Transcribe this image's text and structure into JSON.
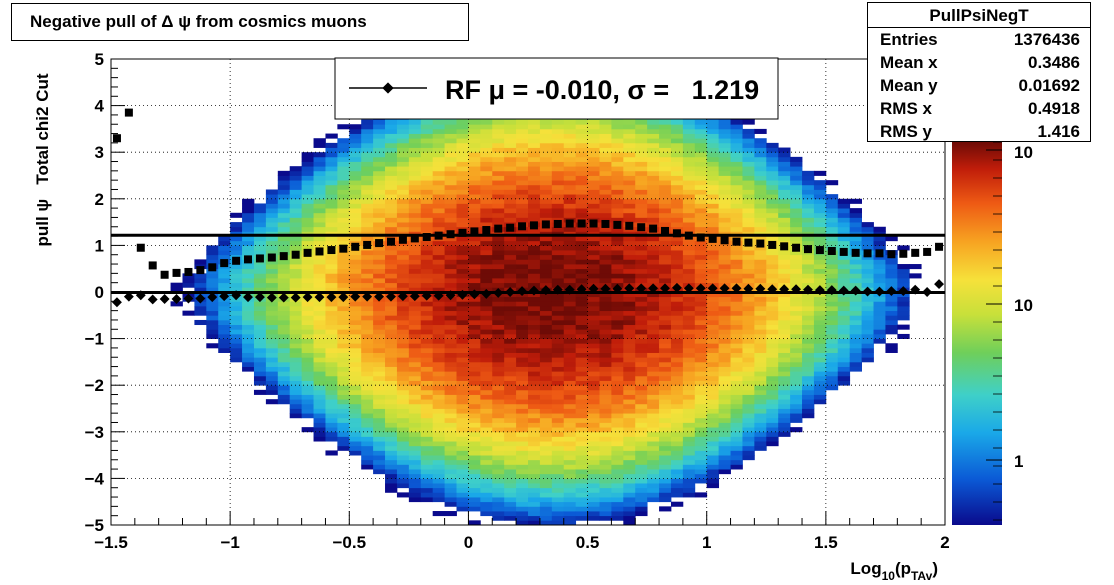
{
  "title": "Negative pull of Δ ψ from cosmics muons",
  "stats": {
    "name": "PullPsiNegT",
    "rows": [
      {
        "label": "Entries",
        "value": "1376436"
      },
      {
        "label": "Mean x",
        "value": "0.3486"
      },
      {
        "label": "Mean y",
        "value": "0.01692"
      },
      {
        "label": "RMS x",
        "value": "0.4918"
      },
      {
        "label": "RMS y",
        "value": "1.416"
      }
    ]
  },
  "legend": {
    "text": "RF μ = -0.010, σ =   1.219"
  },
  "colors": {
    "mean_marker": "#000000",
    "fit_line": "#000000",
    "palette": "rainbow (dark blue → cyan → green → yellow → orange → dark red)"
  },
  "chart_data": {
    "type": "heatmap",
    "xlabel_base": "Log",
    "xlabel_sub": "10",
    "xlabel_open": "(p",
    "xlabel_sub2": "TAv",
    "xlabel_close": ")",
    "ylabel": "pull ψ   Total chi2 Cut",
    "xlim": [
      -1.5,
      2
    ],
    "ylim": [
      -5,
      5
    ],
    "x_ticks": [
      "−1.5",
      "−1",
      "−0.5",
      "0",
      "0.5",
      "1",
      "1.5",
      "2"
    ],
    "y_ticks": [
      "−5",
      "−4",
      "−3",
      "−2",
      "−1",
      "0",
      "1",
      "2",
      "3",
      "4",
      "5"
    ],
    "grid": true,
    "colorbar_labels": [
      "1",
      "10",
      "10"
    ],
    "density": {
      "center_x": 0.35,
      "sigma_x": 0.49,
      "center_y": 0.0,
      "sigma_y": 1.416
    },
    "fit_lines": [
      {
        "name": "mean",
        "y": -0.01
      },
      {
        "name": "sigma",
        "y": 1.219
      }
    ],
    "series": [
      {
        "marker": "diamond",
        "x": [
          -1.475,
          -1.425,
          -1.375,
          -1.325,
          -1.275,
          -1.225,
          -1.175,
          -1.125,
          -1.075,
          -1.025,
          -0.975,
          -0.925,
          -0.875,
          -0.825,
          -0.775,
          -0.725,
          -0.675,
          -0.625,
          -0.575,
          -0.525,
          -0.475,
          -0.425,
          -0.375,
          -0.325,
          -0.275,
          -0.225,
          -0.175,
          -0.125,
          -0.075,
          -0.025,
          0.025,
          0.075,
          0.125,
          0.175,
          0.225,
          0.275,
          0.325,
          0.375,
          0.425,
          0.475,
          0.525,
          0.575,
          0.625,
          0.675,
          0.725,
          0.775,
          0.825,
          0.875,
          0.925,
          0.975,
          1.025,
          1.075,
          1.125,
          1.175,
          1.225,
          1.275,
          1.325,
          1.375,
          1.425,
          1.475,
          1.525,
          1.575,
          1.625,
          1.675,
          1.725,
          1.775,
          1.825,
          1.875,
          1.925,
          1.975
        ],
        "y": [
          -0.22,
          -0.1,
          -0.07,
          -0.16,
          -0.15,
          -0.15,
          -0.14,
          -0.14,
          -0.11,
          -0.09,
          -0.07,
          -0.11,
          -0.11,
          -0.12,
          -0.12,
          -0.12,
          -0.11,
          -0.11,
          -0.11,
          -0.11,
          -0.1,
          -0.1,
          -0.1,
          -0.1,
          -0.09,
          -0.09,
          -0.08,
          -0.08,
          -0.07,
          -0.06,
          -0.05,
          -0.04,
          -0.02,
          0.0,
          0.02,
          0.03,
          0.04,
          0.05,
          0.05,
          0.06,
          0.07,
          0.07,
          0.07,
          0.08,
          0.08,
          0.08,
          0.08,
          0.09,
          0.08,
          0.08,
          0.08,
          0.08,
          0.08,
          0.07,
          0.07,
          0.06,
          0.06,
          0.06,
          0.05,
          0.04,
          0.04,
          0.03,
          0.03,
          0.01,
          0.01,
          0.02,
          0.02,
          0.05,
          0.0,
          0.17
        ]
      },
      {
        "marker": "square",
        "x": [
          -1.475,
          -1.425,
          -1.375,
          -1.325,
          -1.275,
          -1.225,
          -1.175,
          -1.125,
          -1.075,
          -1.025,
          -0.975,
          -0.925,
          -0.875,
          -0.825,
          -0.775,
          -0.725,
          -0.675,
          -0.625,
          -0.575,
          -0.525,
          -0.475,
          -0.425,
          -0.375,
          -0.325,
          -0.275,
          -0.225,
          -0.175,
          -0.125,
          -0.075,
          -0.025,
          0.025,
          0.075,
          0.125,
          0.175,
          0.225,
          0.275,
          0.325,
          0.375,
          0.425,
          0.475,
          0.525,
          0.575,
          0.625,
          0.675,
          0.725,
          0.775,
          0.825,
          0.875,
          0.925,
          0.975,
          1.025,
          1.075,
          1.125,
          1.175,
          1.225,
          1.275,
          1.325,
          1.375,
          1.425,
          1.475,
          1.525,
          1.575,
          1.625,
          1.675,
          1.725,
          1.775,
          1.825,
          1.875,
          1.925,
          1.975
        ],
        "y": [
          3.3,
          3.85,
          0.95,
          0.57,
          0.37,
          0.41,
          0.43,
          0.47,
          0.53,
          0.62,
          0.67,
          0.7,
          0.72,
          0.74,
          0.77,
          0.8,
          0.84,
          0.87,
          0.9,
          0.93,
          0.97,
          1.01,
          1.05,
          1.08,
          1.12,
          1.15,
          1.18,
          1.21,
          1.24,
          1.27,
          1.3,
          1.33,
          1.36,
          1.38,
          1.41,
          1.43,
          1.45,
          1.46,
          1.47,
          1.47,
          1.47,
          1.46,
          1.44,
          1.42,
          1.39,
          1.36,
          1.31,
          1.26,
          1.21,
          1.17,
          1.14,
          1.11,
          1.08,
          1.06,
          1.04,
          1.01,
          0.98,
          0.95,
          0.92,
          0.9,
          0.88,
          0.86,
          0.84,
          0.83,
          0.83,
          0.81,
          0.82,
          0.84,
          0.86,
          0.97
        ]
      }
    ]
  }
}
